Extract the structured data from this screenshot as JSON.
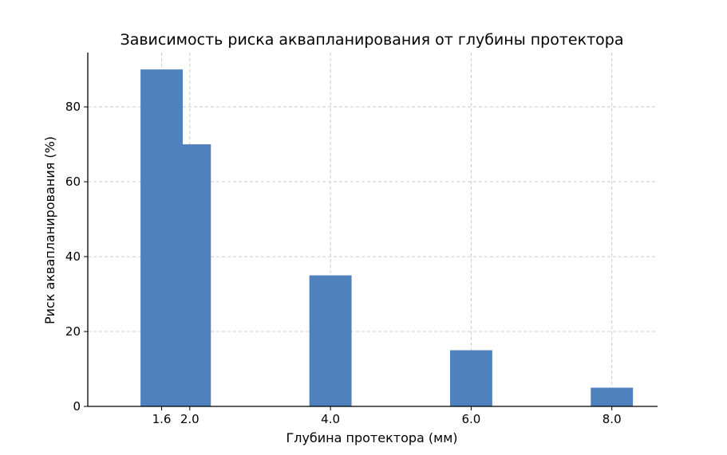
{
  "chart_data": {
    "type": "bar",
    "title": "Зависимость риска аквапланирования от глубины протектора",
    "xlabel": "Глубина протектора (мм)",
    "ylabel": "Риск аквапланирования (%)",
    "x": [
      1.6,
      2.0,
      4.0,
      6.0,
      8.0
    ],
    "x_tick_labels": [
      "1.6",
      "2.0",
      "4.0",
      "6.0",
      "8.0"
    ],
    "values": [
      90,
      70,
      35,
      15,
      5
    ],
    "bar_width": 0.6,
    "xlim": [
      0.55,
      8.65
    ],
    "ylim": [
      0,
      94.5
    ],
    "y_ticks": [
      0,
      20,
      40,
      60,
      80
    ],
    "grid": true,
    "bar_color": "#4f81bd"
  }
}
